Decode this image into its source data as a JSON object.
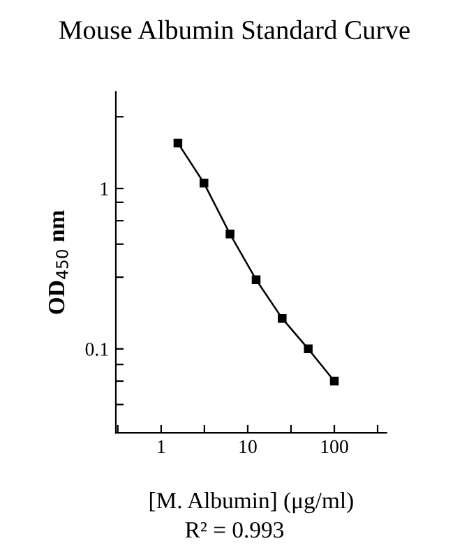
{
  "chart_data": {
    "type": "line",
    "title": "Mouse Albumin Standard Curve",
    "xlabel": "[M. Albumin] (μg/ml)",
    "ylabel": "OD$_{450}$ nm",
    "annotations": [
      "R² = 0.993"
    ],
    "x": [
      1.5625,
      3.125,
      6.25,
      12.5,
      25,
      50,
      100
    ],
    "series": [
      {
        "color": "#000000",
        "values": [
          1.92,
          1.08,
          0.52,
          0.27,
          0.155,
          0.1,
          0.063
        ]
      }
    ],
    "log": "xy",
    "marker": "square",
    "line_style": "solid",
    "xlim": [
      0.3,
      400
    ],
    "ylim": [
      0.03,
      4
    ],
    "xticks": [
      {
        "value": 0.316,
        "label": null
      },
      1,
      {
        "value": 3.16,
        "label": null
      },
      10,
      {
        "value": 31.6,
        "label": null
      },
      100,
      {
        "value": 316,
        "label": null
      }
    ],
    "yticks": [
      {
        "value": 0.045,
        "label": null
      },
      {
        "value": 0.063,
        "label": null
      },
      {
        "value": 0.08,
        "label": null
      },
      0.1,
      {
        "value": 0.28,
        "label": null
      },
      {
        "value": 0.45,
        "label": null
      },
      {
        "value": 0.63,
        "label": null
      },
      {
        "value": 0.82,
        "label": null
      },
      1,
      {
        "value": 2.8,
        "label": null
      }
    ]
  }
}
